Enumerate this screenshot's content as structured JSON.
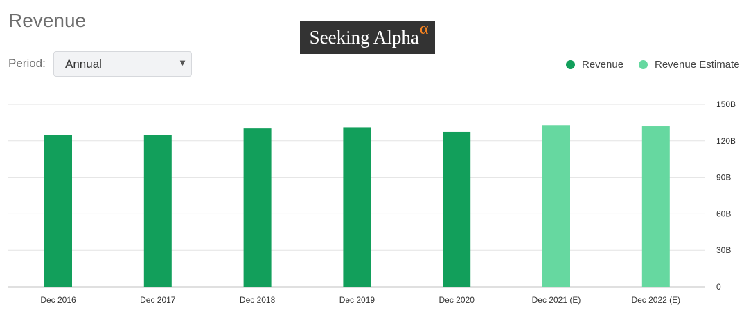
{
  "header": {
    "title": "Revenue"
  },
  "logo": {
    "text": "Seeking Alpha",
    "mark": "α"
  },
  "period": {
    "label": "Period:",
    "selected": "Annual",
    "caret": "▼"
  },
  "colors": {
    "revenue": "#129f5b",
    "estimate": "#66d8a0",
    "grid": "#e3e3e3",
    "axis": "#c0c0c0"
  },
  "chart_data": {
    "type": "bar",
    "title": "Revenue",
    "categories": [
      "Dec 2016",
      "Dec 2017",
      "Dec 2018",
      "Dec 2019",
      "Dec 2020",
      "Dec 2021 (E)",
      "Dec 2022 (E)"
    ],
    "series": [
      {
        "name": "Revenue",
        "values": [
          124.9,
          124.8,
          130.6,
          131.0,
          127.3,
          null,
          null
        ],
        "color": "#129f5b"
      },
      {
        "name": "Revenue Estimate",
        "values": [
          null,
          null,
          null,
          null,
          null,
          132.8,
          131.8
        ],
        "color": "#66d8a0"
      }
    ],
    "yticks": [
      {
        "value": 0,
        "label": "0"
      },
      {
        "value": 30,
        "label": "30B"
      },
      {
        "value": 60,
        "label": "60B"
      },
      {
        "value": 90,
        "label": "90B"
      },
      {
        "value": 120,
        "label": "120B"
      },
      {
        "value": 150,
        "label": "150B"
      }
    ],
    "ylim": [
      0,
      150
    ],
    "yunit": "B",
    "grid": true,
    "legend": "top-right"
  }
}
